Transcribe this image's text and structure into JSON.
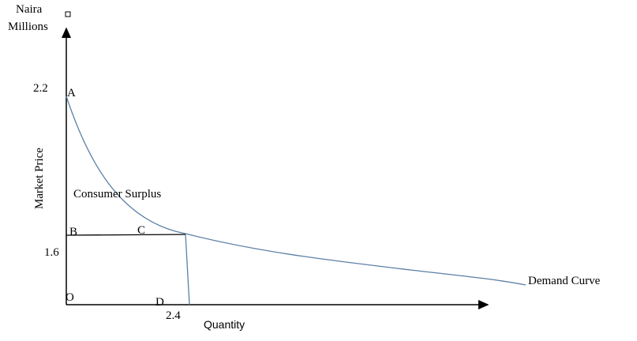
{
  "y_axis": {
    "title_lines": [
      "Naira",
      "Millions"
    ],
    "label": "Market Price",
    "values": [
      2.2,
      1.6
    ]
  },
  "x_axis": {
    "label": "Quantity",
    "values": [
      2.4
    ]
  },
  "points": [
    "A",
    "B",
    "C",
    "D",
    "O"
  ],
  "regions": {
    "surplus": "Consumer Surplus",
    "curve": "Demand Curve"
  }
}
